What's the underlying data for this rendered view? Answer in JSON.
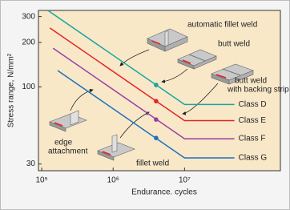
{
  "chart_data": {
    "type": "line",
    "x_label": "Endurance. cycles",
    "y_label": "Stress range, N/mm²",
    "log_x": true,
    "log_y": true,
    "xlim": [
      90000,
      220000000
    ],
    "ylim": [
      27,
      330
    ],
    "xticks": [
      {
        "value": 100000,
        "label": "10⁵"
      },
      {
        "value": 1000000,
        "label": "10⁶"
      },
      {
        "value": 10000000,
        "label": "10⁷"
      }
    ],
    "yticks": [
      30,
      100,
      200,
      300
    ],
    "series": [
      {
        "name": "Class D",
        "color": "#17a5a0",
        "x": [
          122000,
          10000000,
          50000000
        ],
        "values": [
          330,
          76,
          76
        ],
        "dot": {
          "x": 4000000,
          "y": 103
        }
      },
      {
        "name": "Class E",
        "color": "#e52329",
        "x": [
          130000,
          10000000,
          50000000
        ],
        "values": [
          251,
          59,
          59
        ],
        "dot": {
          "x": 4000000,
          "y": 80
        }
      },
      {
        "name": "Class F",
        "color": "#9a3fa3",
        "x": [
          144000,
          10000000,
          50000000
        ],
        "values": [
          183,
          44.5,
          44.5
        ],
        "dot": {
          "x": 4000000,
          "y": 60
        }
      },
      {
        "name": "Class G",
        "color": "#1f70bf",
        "x": [
          167000,
          10000000,
          50000000
        ],
        "values": [
          129,
          33,
          33
        ],
        "dot": {
          "x": 4000000,
          "y": 45
        }
      }
    ],
    "annotations": [
      "automatic fillet weld",
      "butt weld",
      "butt weld",
      "with backing strip",
      "edge",
      "attachment",
      "fillet weld"
    ]
  }
}
